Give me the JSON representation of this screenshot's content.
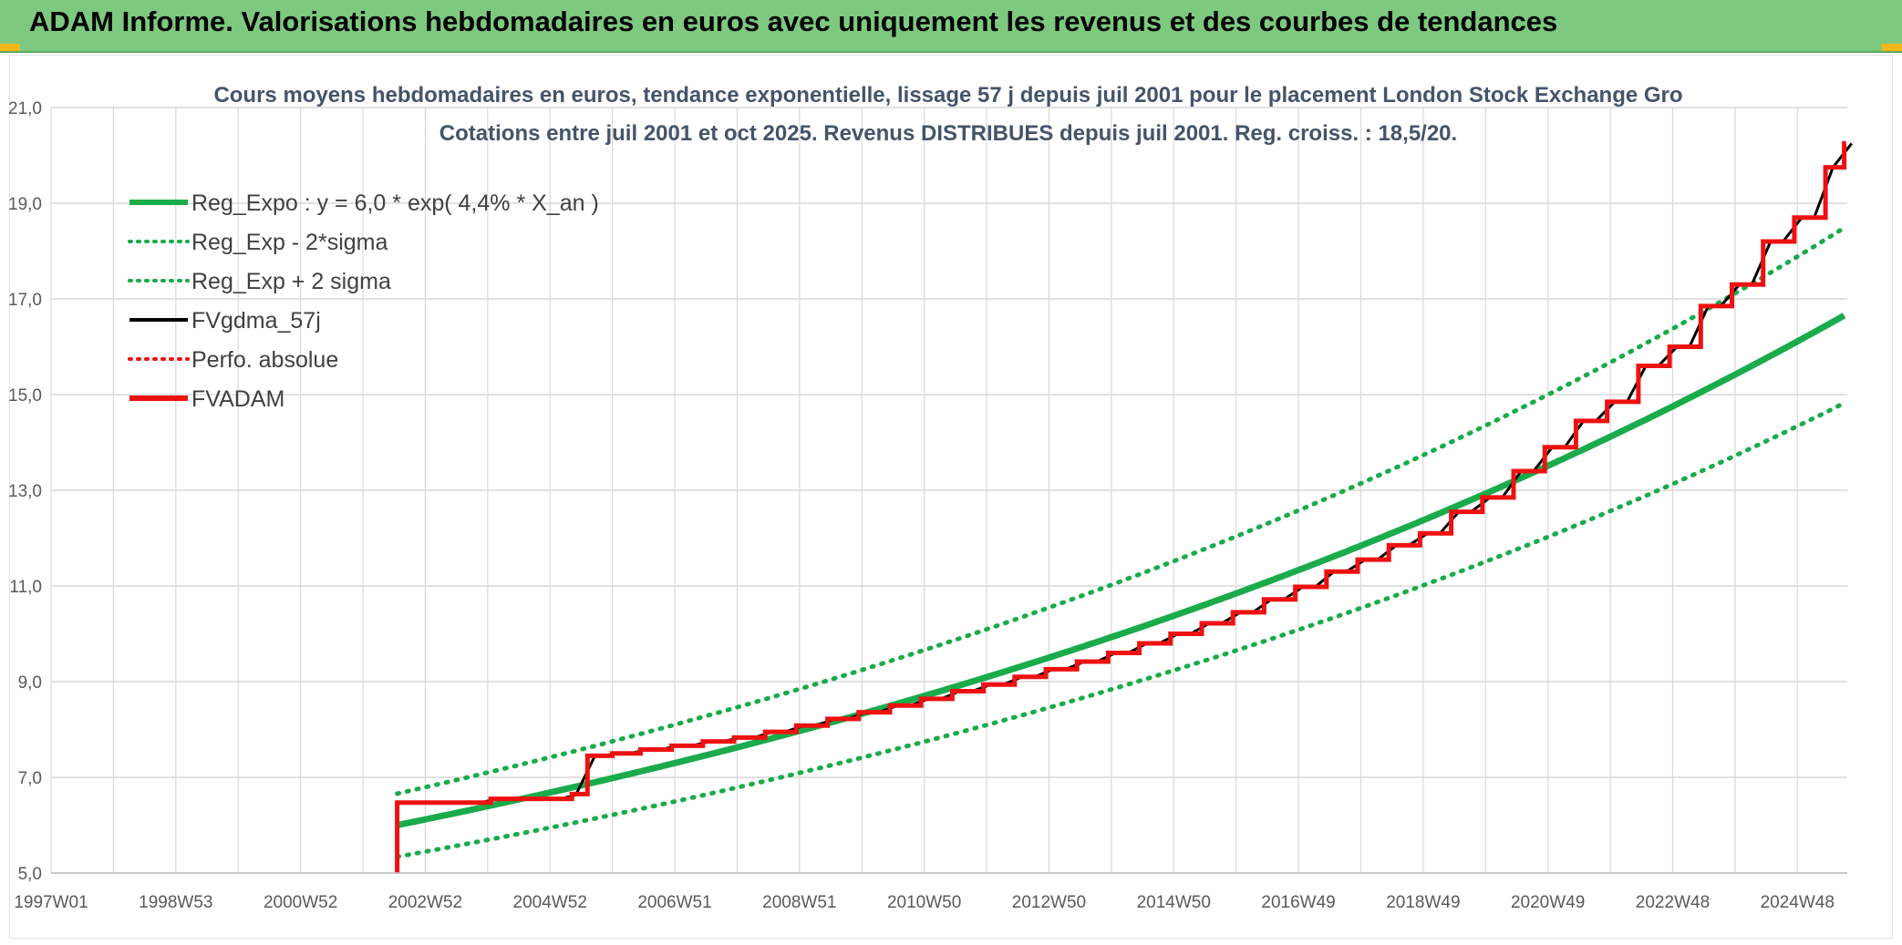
{
  "page": {
    "banner_title": "ADAM Informe. Valorisations hebdomadaires en euros avec uniquement les revenus et des courbes de tendances"
  },
  "colors": {
    "banner_bg": "#7dc97f",
    "green": "#1aab4b",
    "black": "#000000",
    "red": "#ee1111",
    "grid": "#d9d9d9"
  },
  "chart_data": {
    "type": "line",
    "title_line1": "Cours moyens hebdomadaires en euros, tendance exponentielle, lissage 57 j depuis juil 2001 pour le placement London Stock Exchange Gro",
    "title_line2": "Cotations entre juil 2001 et oct 2025. Revenus DISTRIBUES depuis juil 2001. Reg. croiss. : 18,5/20.",
    "x_start_year": 1997.0,
    "x_end_year": 2025.8,
    "x_tick_years": [
      1997.0,
      1999.0,
      2001.0,
      2003.0,
      2005.0,
      2007.0,
      2009.0,
      2011.0,
      2013.0,
      2015.0,
      2017.0,
      2019.0,
      2021.0,
      2023.0,
      2025.0
    ],
    "x_tick_labels": [
      "1997W01",
      "1998W53",
      "2000W52",
      "2002W52",
      "2004W52",
      "2006W51",
      "2008W51",
      "2010W50",
      "2012W50",
      "2014W50",
      "2016W49",
      "2018W49",
      "2020W49",
      "2022W48",
      "2024W48"
    ],
    "ylim": [
      5,
      21
    ],
    "y_ticks": [
      "5,0",
      "7,0",
      "9,0",
      "11,0",
      "13,0",
      "15,0",
      "17,0",
      "19,0",
      "21,0"
    ],
    "grid": true,
    "legend_position": "top-left",
    "legend": [
      {
        "label": "Reg_Expo : y = 6,0 * exp( 4,4% *  X_an )",
        "style": "solid-thick",
        "color": "#1aab4b"
      },
      {
        "label": "Reg_Exp - 2*sigma",
        "style": "dotted",
        "color": "#1aab4b"
      },
      {
        "label": "Reg_Exp + 2 sigma",
        "style": "dotted",
        "color": "#1aab4b"
      },
      {
        "label": "FVgdma_57j",
        "style": "solid",
        "color": "#000000"
      },
      {
        "label": "Perfo. absolue",
        "style": "dotted",
        "color": "#ee1111"
      },
      {
        "label": "FVADAM",
        "style": "solid-thick",
        "color": "#ee1111"
      }
    ],
    "regression": {
      "start_year": 2002.55,
      "end_year": 2025.8,
      "a": 6.0,
      "rate": 0.044,
      "sigma_factor": 0.11
    },
    "fvadam_steps": [
      {
        "x": 2002.55,
        "y": 5.0
      },
      {
        "x": 2002.55,
        "y": 6.47
      },
      {
        "x": 2004.05,
        "y": 6.55
      },
      {
        "x": 2005.35,
        "y": 6.65
      },
      {
        "x": 2005.6,
        "y": 7.45
      },
      {
        "x": 2006.0,
        "y": 7.5
      },
      {
        "x": 2006.45,
        "y": 7.58
      },
      {
        "x": 2006.95,
        "y": 7.66
      },
      {
        "x": 2007.45,
        "y": 7.75
      },
      {
        "x": 2007.95,
        "y": 7.83
      },
      {
        "x": 2008.45,
        "y": 7.95
      },
      {
        "x": 2008.95,
        "y": 8.08
      },
      {
        "x": 2009.45,
        "y": 8.22
      },
      {
        "x": 2009.95,
        "y": 8.36
      },
      {
        "x": 2010.45,
        "y": 8.5
      },
      {
        "x": 2010.95,
        "y": 8.64
      },
      {
        "x": 2011.45,
        "y": 8.8
      },
      {
        "x": 2011.95,
        "y": 8.94
      },
      {
        "x": 2012.45,
        "y": 9.1
      },
      {
        "x": 2012.95,
        "y": 9.26
      },
      {
        "x": 2013.45,
        "y": 9.42
      },
      {
        "x": 2013.95,
        "y": 9.6
      },
      {
        "x": 2014.45,
        "y": 9.8
      },
      {
        "x": 2014.95,
        "y": 10.0
      },
      {
        "x": 2015.45,
        "y": 10.22
      },
      {
        "x": 2015.95,
        "y": 10.45
      },
      {
        "x": 2016.45,
        "y": 10.72
      },
      {
        "x": 2016.95,
        "y": 10.98
      },
      {
        "x": 2017.45,
        "y": 11.3
      },
      {
        "x": 2017.95,
        "y": 11.55
      },
      {
        "x": 2018.45,
        "y": 11.85
      },
      {
        "x": 2018.95,
        "y": 12.1
      },
      {
        "x": 2019.45,
        "y": 12.55
      },
      {
        "x": 2019.95,
        "y": 12.85
      },
      {
        "x": 2020.45,
        "y": 13.4
      },
      {
        "x": 2020.95,
        "y": 13.9
      },
      {
        "x": 2021.45,
        "y": 14.45
      },
      {
        "x": 2021.95,
        "y": 14.85
      },
      {
        "x": 2022.45,
        "y": 15.6
      },
      {
        "x": 2022.95,
        "y": 16.0
      },
      {
        "x": 2023.45,
        "y": 16.85
      },
      {
        "x": 2023.95,
        "y": 17.3
      },
      {
        "x": 2024.45,
        "y": 18.2
      },
      {
        "x": 2024.95,
        "y": 18.7
      },
      {
        "x": 2025.45,
        "y": 19.75
      },
      {
        "x": 2025.75,
        "y": 20.25
      }
    ]
  }
}
